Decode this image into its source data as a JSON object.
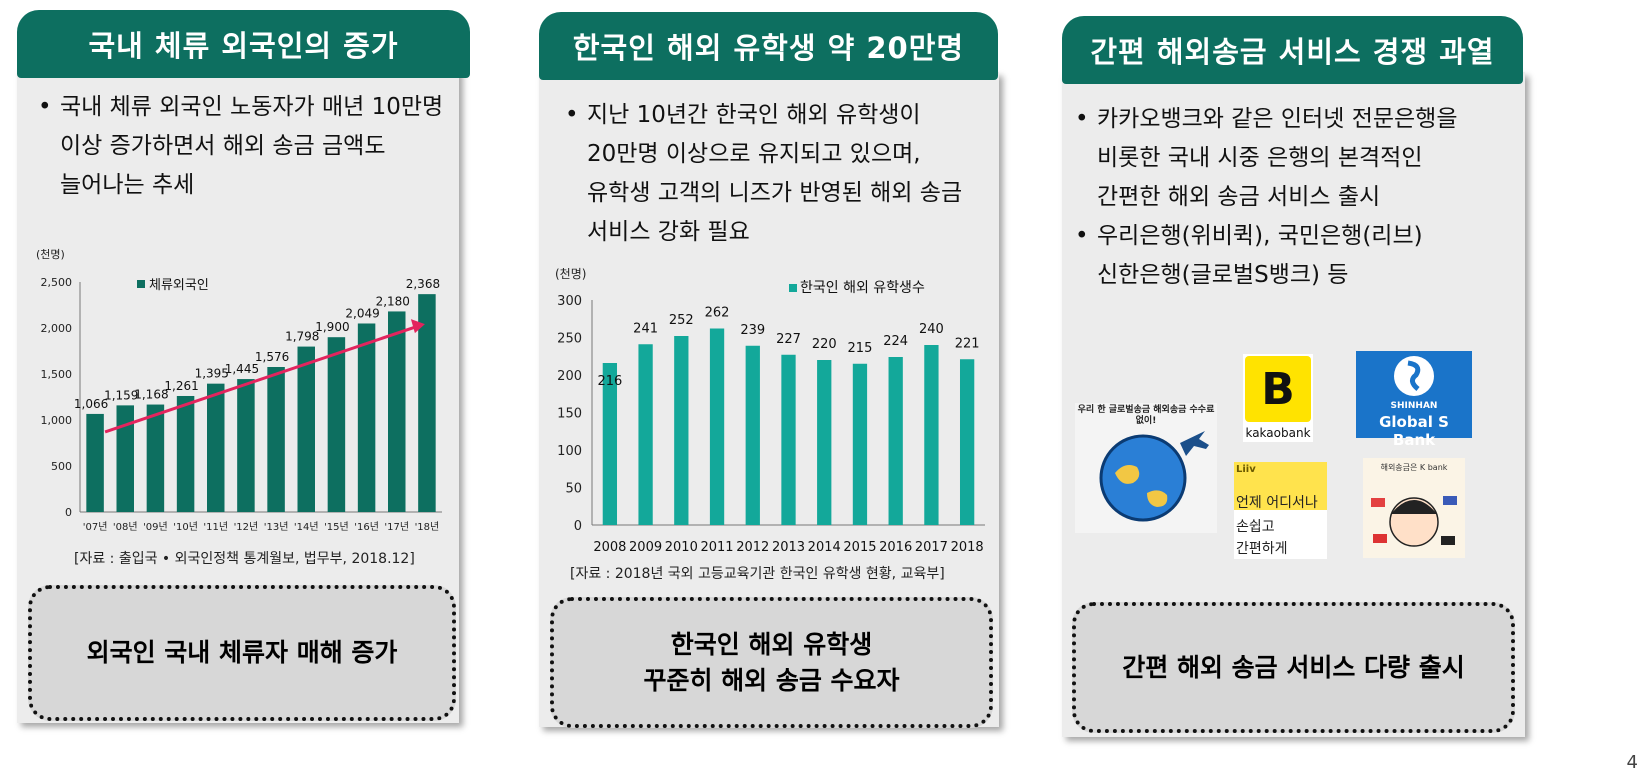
{
  "colors": {
    "header": "#0d6f60",
    "bar1": "#0d6f60",
    "bar2": "#13a89a",
    "trend": "#e3245e",
    "panel": "#ececec"
  },
  "panel1": {
    "title": "국내 체류 외국인의 증가",
    "bullet_lines": [
      "국내 체류 외국인 노동자가 매년 10만명",
      "이상 증가하면서 해외 송금 금액도",
      "늘어나는 추세"
    ],
    "source": "[자료 : 출입국 • 외국인정책 통계월보, 법무부, 2018.12]",
    "callout": "외국인 국내 체류자 매해 증가"
  },
  "panel2": {
    "title": "한국인 해외 유학생 약 20만명",
    "bullet_lines": [
      "지난 10년간 한국인 해외 유학생이",
      "20만명 이상으로 유지되고 있으며,",
      "유학생 고객의 니즈가 반영된 해외 송금",
      "서비스 강화 필요"
    ],
    "source": "[자료 : 2018년 국외 고등교육기관 한국인 유학생 현황, 교육부]",
    "callout": "한국인 해외 유학생\n꾸준히 해외 송금 수요자"
  },
  "panel3": {
    "title": "간편 해외송금 서비스 경쟁 과열",
    "bullet1_lines": [
      "카카오뱅크와 같은 인터넷 전문은행을",
      "비롯한 국내 시중 은행의 본격적인",
      "간편한 해외 송금 서비스 출시"
    ],
    "bullet2_lines": [
      "우리은행(위비퀵), 국민은행(리브)",
      "신한은행(글로벌S뱅크) 등"
    ],
    "callout": "간편 해외 송금 서비스 다량 출시",
    "logos": {
      "kakao_letter": "B",
      "kakao_name": "kakaobank",
      "shinhan_top": "SHINHAN",
      "shinhan_bottom": "Global S Bank",
      "liiv_brand": "Liiv",
      "liiv_lines": [
        "언제 어디서나",
        "손쉽고",
        "간편하게"
      ],
      "kbank_header": "해외송금은 K bank",
      "wibee_circle_text": "우리 한 글로벌송금 해외송금 수수료 없이!"
    }
  },
  "page_number": "4",
  "chart_data": [
    {
      "type": "bar",
      "unit": "(천명)",
      "series": [
        {
          "name": "체류외국인",
          "values": [
            1066,
            1159,
            1168,
            1261,
            1395,
            1445,
            1576,
            1798,
            1900,
            2049,
            2180,
            2368
          ]
        }
      ],
      "categories": [
        "'07년",
        "'08년",
        "'09년",
        "'10년",
        "'11년",
        "'12년",
        "'13년",
        "'14년",
        "'15년",
        "'16년",
        "'17년",
        "'18년"
      ],
      "value_labels": [
        "1,066",
        "1,159",
        "1,168",
        "1,261",
        "1,395",
        "1,445",
        "1,576",
        "1,798",
        "1,900",
        "2,049",
        "2,180",
        "2,368"
      ],
      "ylim": [
        0,
        2500
      ],
      "yticks": [
        0,
        500,
        1000,
        1500,
        2000,
        2500
      ],
      "ytick_labels": [
        "0",
        "500",
        "1,000",
        "1,500",
        "2,000",
        "2,500"
      ],
      "trend_arrow": true,
      "legend_position": "top-left",
      "grid": false
    },
    {
      "type": "bar",
      "unit": "(천명)",
      "series": [
        {
          "name": "한국인 해외 유학생수",
          "values": [
            216,
            241,
            252,
            262,
            239,
            227,
            220,
            215,
            224,
            240,
            221
          ]
        }
      ],
      "categories": [
        "2008",
        "2009",
        "2010",
        "2011",
        "2012",
        "2013",
        "2014",
        "2015",
        "2016",
        "2017",
        "2018"
      ],
      "ylim": [
        0,
        300
      ],
      "yticks": [
        0,
        50,
        100,
        150,
        200,
        250,
        300
      ],
      "legend_position": "top-right",
      "grid": false
    }
  ]
}
